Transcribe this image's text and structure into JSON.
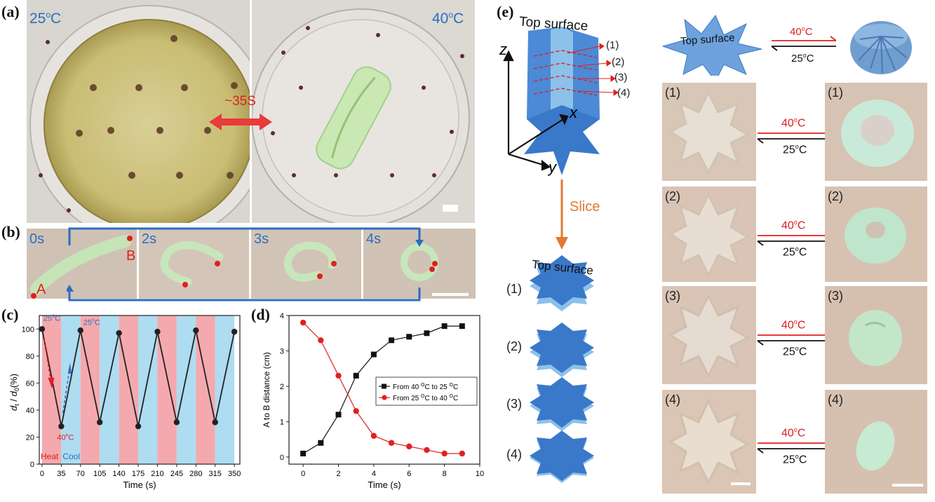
{
  "panel_a": {
    "label": "(a)",
    "left_temp": "25",
    "right_temp": "40",
    "temp_unit": "C",
    "arrow_text": "~35S"
  },
  "panel_b": {
    "label": "(b)",
    "frames": [
      "0s",
      "2s",
      "3s",
      "4s"
    ],
    "point_a": "A",
    "point_b": "B"
  },
  "panel_c": {
    "label": "(c)",
    "ylabel_main": "d",
    "ylabel_sub_t": "t",
    "ylabel_sep": " / ",
    "ylabel_sub_0": "0",
    "ylabel_unit": "(%)",
    "xlabel": "Time (s)",
    "ann_25_first": "25",
    "ann_25_second": "25",
    "ann_40": "40",
    "ann_deg": "o",
    "ann_c": "C",
    "heat": "Heat",
    "cool": "Cool",
    "chart_data": {
      "type": "line",
      "x": [
        0,
        35,
        70,
        105,
        140,
        175,
        210,
        245,
        280,
        315,
        350
      ],
      "y": [
        100,
        28,
        99,
        31,
        97,
        28,
        98,
        31,
        99,
        31,
        98
      ],
      "xlabel": "Time (s)",
      "ylim": [
        0,
        110
      ],
      "xlim": [
        -5,
        360
      ],
      "xticks": [
        "0",
        "35",
        "70",
        "105",
        "140",
        "175",
        "210",
        "245",
        "280",
        "315",
        "350"
      ],
      "yticks": [
        "0",
        "20",
        "40",
        "60",
        "80",
        "100"
      ],
      "band_colors": {
        "heat": "#f4a9ae",
        "cool": "#aedcf0"
      }
    }
  },
  "panel_d": {
    "label": "(d)",
    "chart_data": {
      "type": "line",
      "xlabel": "Time (s)",
      "ylabel": "A to B distance (cm)",
      "xlim": [
        -0.8,
        10
      ],
      "ylim": [
        -0.2,
        4
      ],
      "xticks": [
        "0",
        "2",
        "4",
        "6",
        "8",
        "10"
      ],
      "yticks": [
        "0",
        "1",
        "2",
        "3",
        "4"
      ],
      "legend_position": "center-right",
      "x": [
        0,
        1,
        2,
        3,
        4,
        5,
        6,
        7,
        8,
        9
      ],
      "series": [
        {
          "name": "From 40 °C to 25 °C",
          "values": [
            0.1,
            0.4,
            1.2,
            2.3,
            2.9,
            3.3,
            3.4,
            3.5,
            3.7,
            3.7
          ],
          "color": "#111111",
          "marker": "square"
        },
        {
          "name": "From 25 °C to 40 °C",
          "values": [
            3.8,
            3.3,
            2.3,
            1.3,
            0.6,
            0.4,
            0.3,
            0.2,
            0.1,
            0.1
          ],
          "color": "#e02020",
          "marker": "circle"
        }
      ]
    },
    "legend_prefix_1": "From 40 ",
    "legend_mid_1": "C to 25 ",
    "legend_end_1": "C",
    "legend_prefix_2": "From 25 ",
    "legend_mid_2": "C to 40 ",
    "legend_end_2": "C",
    "legend_deg": "O"
  },
  "panel_e": {
    "label": "(e)",
    "top_surface": "Top surface",
    "axis_z": "z",
    "axis_x": "x",
    "axis_y": "y",
    "slices": [
      "(1)",
      "(2)",
      "(3)",
      "(4)"
    ],
    "slice_text": "Slice",
    "slice_top_surface": "Top surface"
  },
  "panel_right": {
    "top_surface": "Top surface",
    "hot": "40",
    "cold": "25",
    "deg": "o",
    "unit": "C",
    "rows": [
      {
        "left": "(1)",
        "right": "(1)"
      },
      {
        "left": "(2)",
        "right": "(2)"
      },
      {
        "left": "(3)",
        "right": "(3)"
      },
      {
        "left": "(4)",
        "right": "(4)"
      }
    ]
  },
  "colors": {
    "star_blue": "#3a78c9",
    "star_light": "#8cc1ea",
    "red": "#e02020",
    "slice_arrow": "#e07a30",
    "label_blue": "#2a6fc0"
  }
}
